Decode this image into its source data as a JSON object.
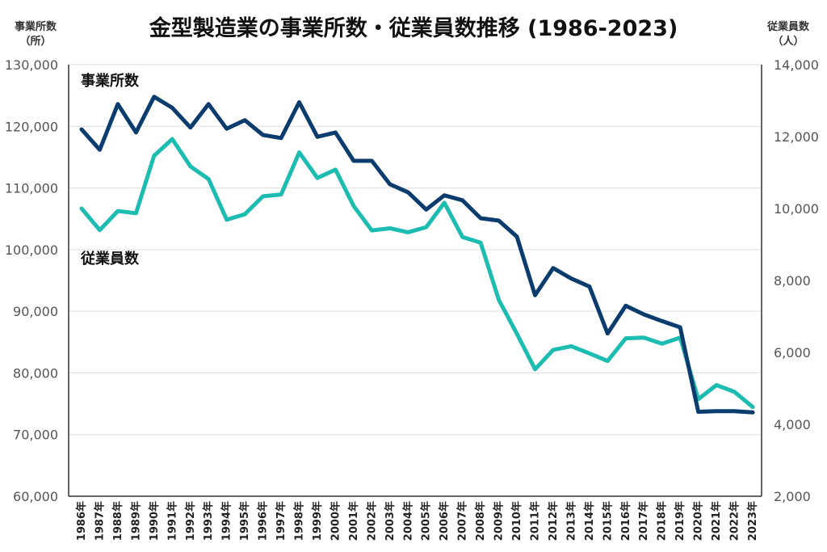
{
  "chart_data": {
    "type": "line",
    "title": "金型製造業の事業所数・従業員数推移 (1986-2023)",
    "left_axis": {
      "label_line1": "事業所数",
      "label_line2": "（所）",
      "ylim": [
        60000,
        130000
      ],
      "ticks": [
        "60,000",
        "70,000",
        "80,000",
        "90,000",
        "100,000",
        "110,000",
        "120,000",
        "130,000"
      ],
      "tick_values": [
        60000,
        70000,
        80000,
        90000,
        100000,
        110000,
        120000,
        130000
      ]
    },
    "right_axis": {
      "label_line1": "従業員数",
      "label_line2": "（人）",
      "ylim": [
        2000,
        14000
      ],
      "ticks": [
        "2,000",
        "4,000",
        "6,000",
        "8,000",
        "10,000",
        "12,000",
        "14,000"
      ],
      "tick_values": [
        2000,
        4000,
        6000,
        8000,
        10000,
        12000,
        14000
      ]
    },
    "categories": [
      "1986年",
      "1987年",
      "1988年",
      "1989年",
      "1990年",
      "1991年",
      "1992年",
      "1993年",
      "1994年",
      "1995年",
      "1996年",
      "1997年",
      "1998年",
      "1999年",
      "2000年",
      "2001年",
      "2002年",
      "2003年",
      "2004年",
      "2005年",
      "2006年",
      "2007年",
      "2008年",
      "2009年",
      "2010年",
      "2011年",
      "2012年",
      "2013年",
      "2014年",
      "2015年",
      "2016年",
      "2017年",
      "2018年",
      "2019年",
      "2020年",
      "2021年",
      "2022年",
      "2023年"
    ],
    "series": [
      {
        "name": "事業所数",
        "axis": "left",
        "color": "#0b3c6e",
        "values": [
          119500,
          116200,
          123600,
          119000,
          124800,
          123000,
          119800,
          123600,
          119600,
          121000,
          118600,
          118100,
          123900,
          118300,
          119000,
          114400,
          114400,
          110600,
          109300,
          106500,
          108800,
          108000,
          105100,
          104700,
          102100,
          92600,
          97000,
          95300,
          94000,
          86400,
          90900,
          89500,
          88400,
          87400,
          73700,
          73800,
          73800,
          73600
        ]
      },
      {
        "name": "従業員数",
        "axis": "right",
        "color": "#1cbcb0",
        "values": [
          10000,
          9400,
          9930,
          9870,
          11470,
          11930,
          11170,
          10820,
          9690,
          9840,
          10340,
          10390,
          11560,
          10850,
          11080,
          10070,
          9390,
          9450,
          9340,
          9480,
          10160,
          9210,
          9050,
          7460,
          6520,
          5530,
          6070,
          6170,
          5970,
          5760,
          6390,
          6410,
          6240,
          6410,
          4700,
          5090,
          4900,
          4480
        ]
      }
    ]
  }
}
